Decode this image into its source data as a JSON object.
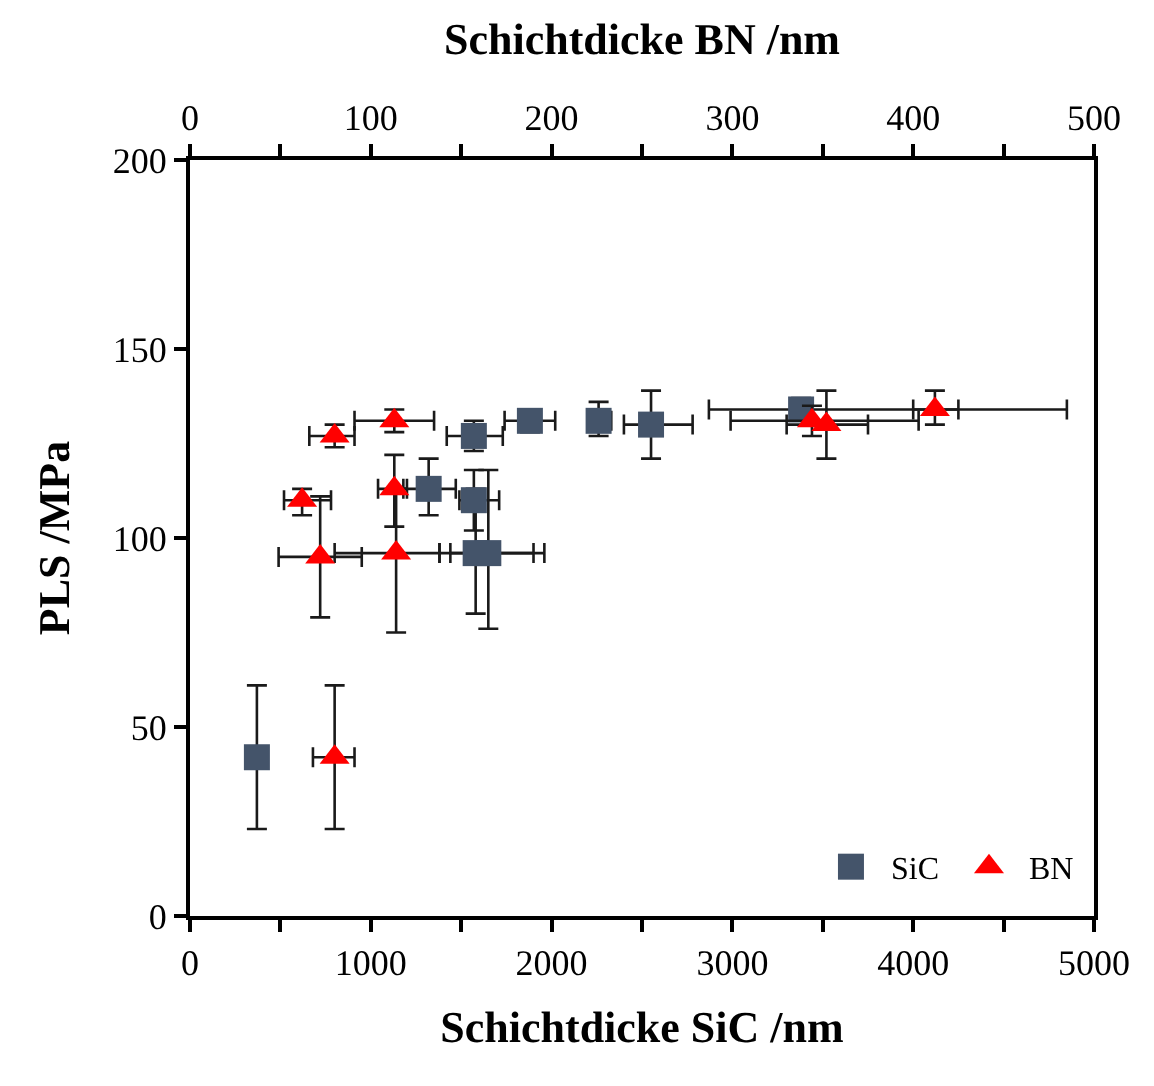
{
  "chart_data": {
    "type": "scatter",
    "xlabel": "Schichtdicke SiC /nm",
    "ylabel": "PLS /MPa",
    "x2label": "Schichtdicke BN /nm",
    "xlim": [
      0,
      5000
    ],
    "xticks": [
      0,
      {
        "value": 500,
        "label": null
      },
      1000,
      {
        "value": 1500,
        "label": null
      },
      2000,
      {
        "value": 2500,
        "label": null
      },
      3000,
      {
        "value": 3500,
        "label": null
      },
      4000,
      {
        "value": 4500,
        "label": null
      },
      5000
    ],
    "x2lim": [
      0,
      500
    ],
    "x2ticks": [
      0,
      {
        "value": 50,
        "label": null
      },
      100,
      {
        "value": 150,
        "label": null
      },
      200,
      {
        "value": 250,
        "label": null
      },
      300,
      {
        "value": 350,
        "label": null
      },
      400,
      {
        "value": 450,
        "label": null
      },
      500
    ],
    "ylim": [
      0,
      200
    ],
    "yticks": [
      0,
      50,
      100,
      150,
      200
    ],
    "legend": "bottom right",
    "series": [
      {
        "name": "SiC",
        "color": "#44546a",
        "marker": "square",
        "x": [
          370,
          1320,
          1570,
          1580,
          1650,
          1570,
          1880,
          2260,
          2550,
          3380
        ],
        "values": [
          42,
          113,
          110,
          96,
          96,
          127,
          131,
          131,
          130,
          134
        ],
        "errors": [
          [
            23,
            61
          ],
          [
            106,
            121
          ],
          [
            102,
            118
          ],
          [
            80,
            113
          ],
          [
            76,
            118
          ],
          [
            123,
            131
          ],
          [
            128,
            134
          ],
          [
            127,
            136
          ],
          [
            121,
            139
          ],
          [
            131,
            137
          ]
        ],
        "xerrors": [
          null,
          [
            1180,
            1470
          ],
          [
            1490,
            1710
          ],
          [
            1380,
            1900
          ],
          [
            1440,
            1960
          ],
          [
            1420,
            1730
          ],
          [
            1740,
            2020
          ],
          [
            2200,
            2330
          ],
          [
            2400,
            2780
          ],
          [
            2870,
            4850
          ]
        ]
      },
      {
        "name": "BN",
        "color": "#ff0000",
        "marker": "triangle",
        "axis": "x2",
        "x": [
          80,
          62,
          80,
          113,
          113,
          72,
          114,
          344,
          352,
          412
        ],
        "values": [
          42,
          110,
          127,
          131,
          113,
          95,
          96,
          131,
          130,
          134
        ],
        "errors": [
          [
            23,
            61
          ],
          [
            106,
            113
          ],
          [
            124,
            130
          ],
          [
            128,
            134
          ],
          [
            103,
            122
          ],
          [
            79,
            111
          ],
          [
            75,
            113
          ],
          [
            127,
            135
          ],
          [
            121,
            139
          ],
          [
            130,
            139
          ]
        ],
        "xerrors": [
          [
            68,
            91
          ],
          [
            52,
            78
          ],
          [
            66,
            91
          ],
          [
            91,
            135
          ],
          [
            104,
            120
          ],
          [
            49,
            95
          ],
          [
            80,
            138
          ],
          [
            299,
            403
          ],
          [
            330,
            375
          ],
          [
            400,
            425
          ]
        ]
      }
    ]
  }
}
